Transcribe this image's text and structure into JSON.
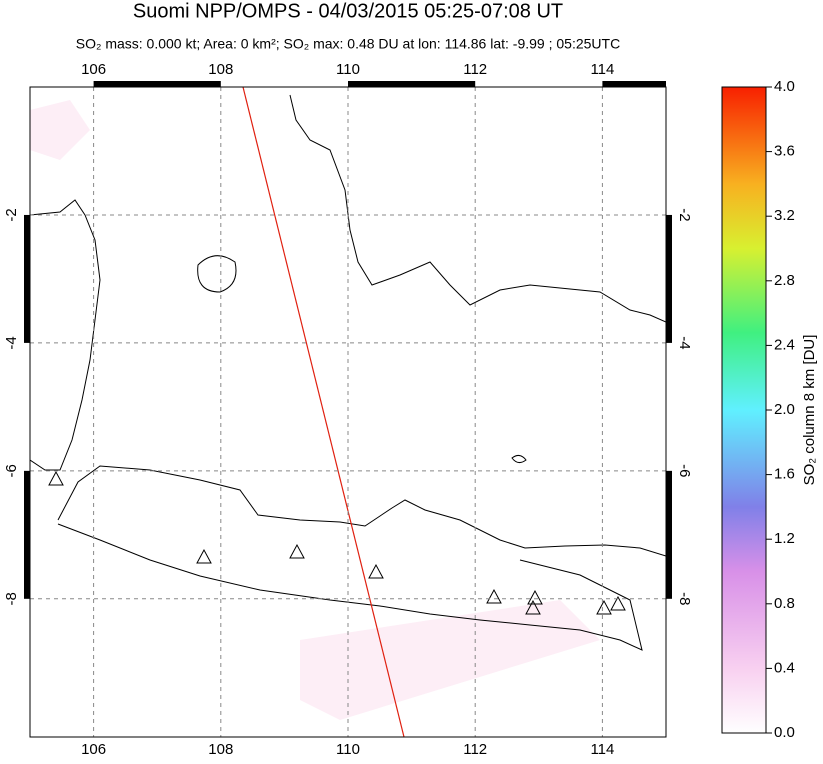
{
  "chart_data": {
    "type": "map",
    "title": "Suomi NPP/OMPS - 04/03/2015 05:25-07:08 UT",
    "subtitle": "SO₂ mass: 0.000 kt; Area: 0 km²; SO₂ max: 0.48 DU at lon: 114.86 lat: -9.99 ; 05:25UTC",
    "xlim": [
      105,
      115
    ],
    "ylim": [
      -10.16,
      0
    ],
    "xticks": [
      106,
      108,
      110,
      112,
      114
    ],
    "yticks": [
      -8,
      -6,
      -4,
      -2
    ],
    "grid": true,
    "colorbar": {
      "label": "SO₂ column 8 km [DU]",
      "lim": [
        0,
        4
      ],
      "ticks": [
        {
          "value": 0,
          "label": "0.0"
        },
        0.4,
        0.8,
        1.2,
        1.6,
        {
          "value": 2,
          "label": "2.0"
        },
        2.4,
        2.8,
        3.2,
        3.6,
        {
          "value": 4,
          "label": "4.0"
        }
      ]
    }
  }
}
